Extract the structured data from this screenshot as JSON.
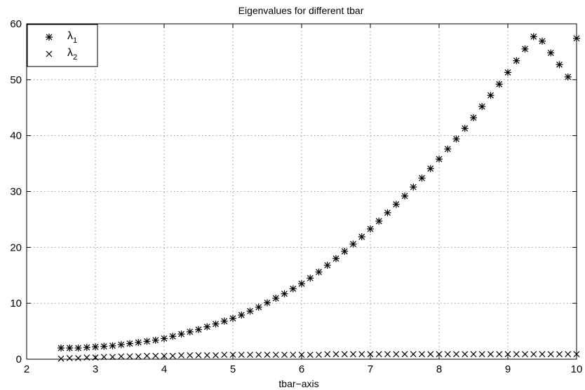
{
  "chart_data": {
    "type": "scatter",
    "title": "Eigenvalues for different tbar",
    "xlabel": "tbar−axis",
    "ylabel": "",
    "xlim": [
      2,
      10
    ],
    "ylim": [
      0,
      60
    ],
    "xticks": [
      "2",
      "3",
      "4",
      "5",
      "6",
      "7",
      "8",
      "9",
      "10"
    ],
    "yticks": [
      "0",
      "10",
      "20",
      "30",
      "40",
      "50",
      "60"
    ],
    "grid": true,
    "legend_position": "top-left",
    "x": [
      2.5,
      2.625,
      2.75,
      2.875,
      3.0,
      3.125,
      3.25,
      3.375,
      3.5,
      3.625,
      3.75,
      3.875,
      4.0,
      4.125,
      4.25,
      4.375,
      4.5,
      4.625,
      4.75,
      4.875,
      5.0,
      5.125,
      5.25,
      5.375,
      5.5,
      5.625,
      5.75,
      5.875,
      6.0,
      6.125,
      6.25,
      6.375,
      6.5,
      6.625,
      6.75,
      6.875,
      7.0,
      7.125,
      7.25,
      7.375,
      7.5,
      7.625,
      7.75,
      7.875,
      8.0,
      8.125,
      8.25,
      8.375,
      8.5,
      8.625,
      8.75,
      8.875,
      9.0,
      9.125,
      9.25,
      9.375,
      9.5,
      9.625,
      9.75,
      9.875,
      10.0
    ],
    "series": [
      {
        "name": "λ1",
        "legend_main": "λ",
        "legend_sub": "1",
        "marker": "asterisk",
        "values": [
          2.0,
          2.0,
          2.0,
          2.1,
          2.2,
          2.3,
          2.4,
          2.6,
          2.8,
          3.0,
          3.2,
          3.4,
          3.7,
          4.1,
          4.5,
          4.9,
          5.3,
          5.8,
          6.3,
          6.8,
          7.3,
          7.9,
          8.6,
          9.3,
          10.1,
          10.9,
          11.7,
          12.6,
          13.5,
          14.5,
          15.6,
          16.8,
          18.0,
          19.3,
          20.6,
          21.9,
          23.3,
          24.7,
          26.2,
          27.7,
          29.2,
          30.8,
          32.4,
          34.1,
          35.8,
          37.6,
          39.4,
          41.3,
          43.2,
          45.2,
          47.2,
          49.2,
          51.3,
          53.4,
          55.5,
          57.7,
          56.9,
          54.8,
          52.7,
          50.5,
          57.4
        ],
        "values_note": "values listed in x order"
      },
      {
        "name": "λ2",
        "legend_main": "λ",
        "legend_sub": "2",
        "marker": "x",
        "values": [
          0.1,
          0.2,
          0.2,
          0.3,
          0.3,
          0.4,
          0.4,
          0.5,
          0.5,
          0.5,
          0.6,
          0.6,
          0.6,
          0.6,
          0.7,
          0.7,
          0.7,
          0.7,
          0.7,
          0.8,
          0.8,
          0.8,
          0.8,
          0.8,
          0.8,
          0.8,
          0.8,
          0.8,
          0.8,
          0.8,
          0.8,
          0.9,
          0.9,
          0.9,
          0.9,
          0.9,
          0.9,
          0.9,
          0.9,
          0.9,
          0.9,
          0.9,
          0.9,
          0.9,
          0.9,
          0.9,
          0.9,
          0.9,
          0.9,
          0.9,
          0.9,
          0.9,
          0.9,
          0.9,
          0.9,
          0.9,
          0.9,
          0.9,
          0.9,
          0.9,
          0.9
        ]
      }
    ]
  }
}
